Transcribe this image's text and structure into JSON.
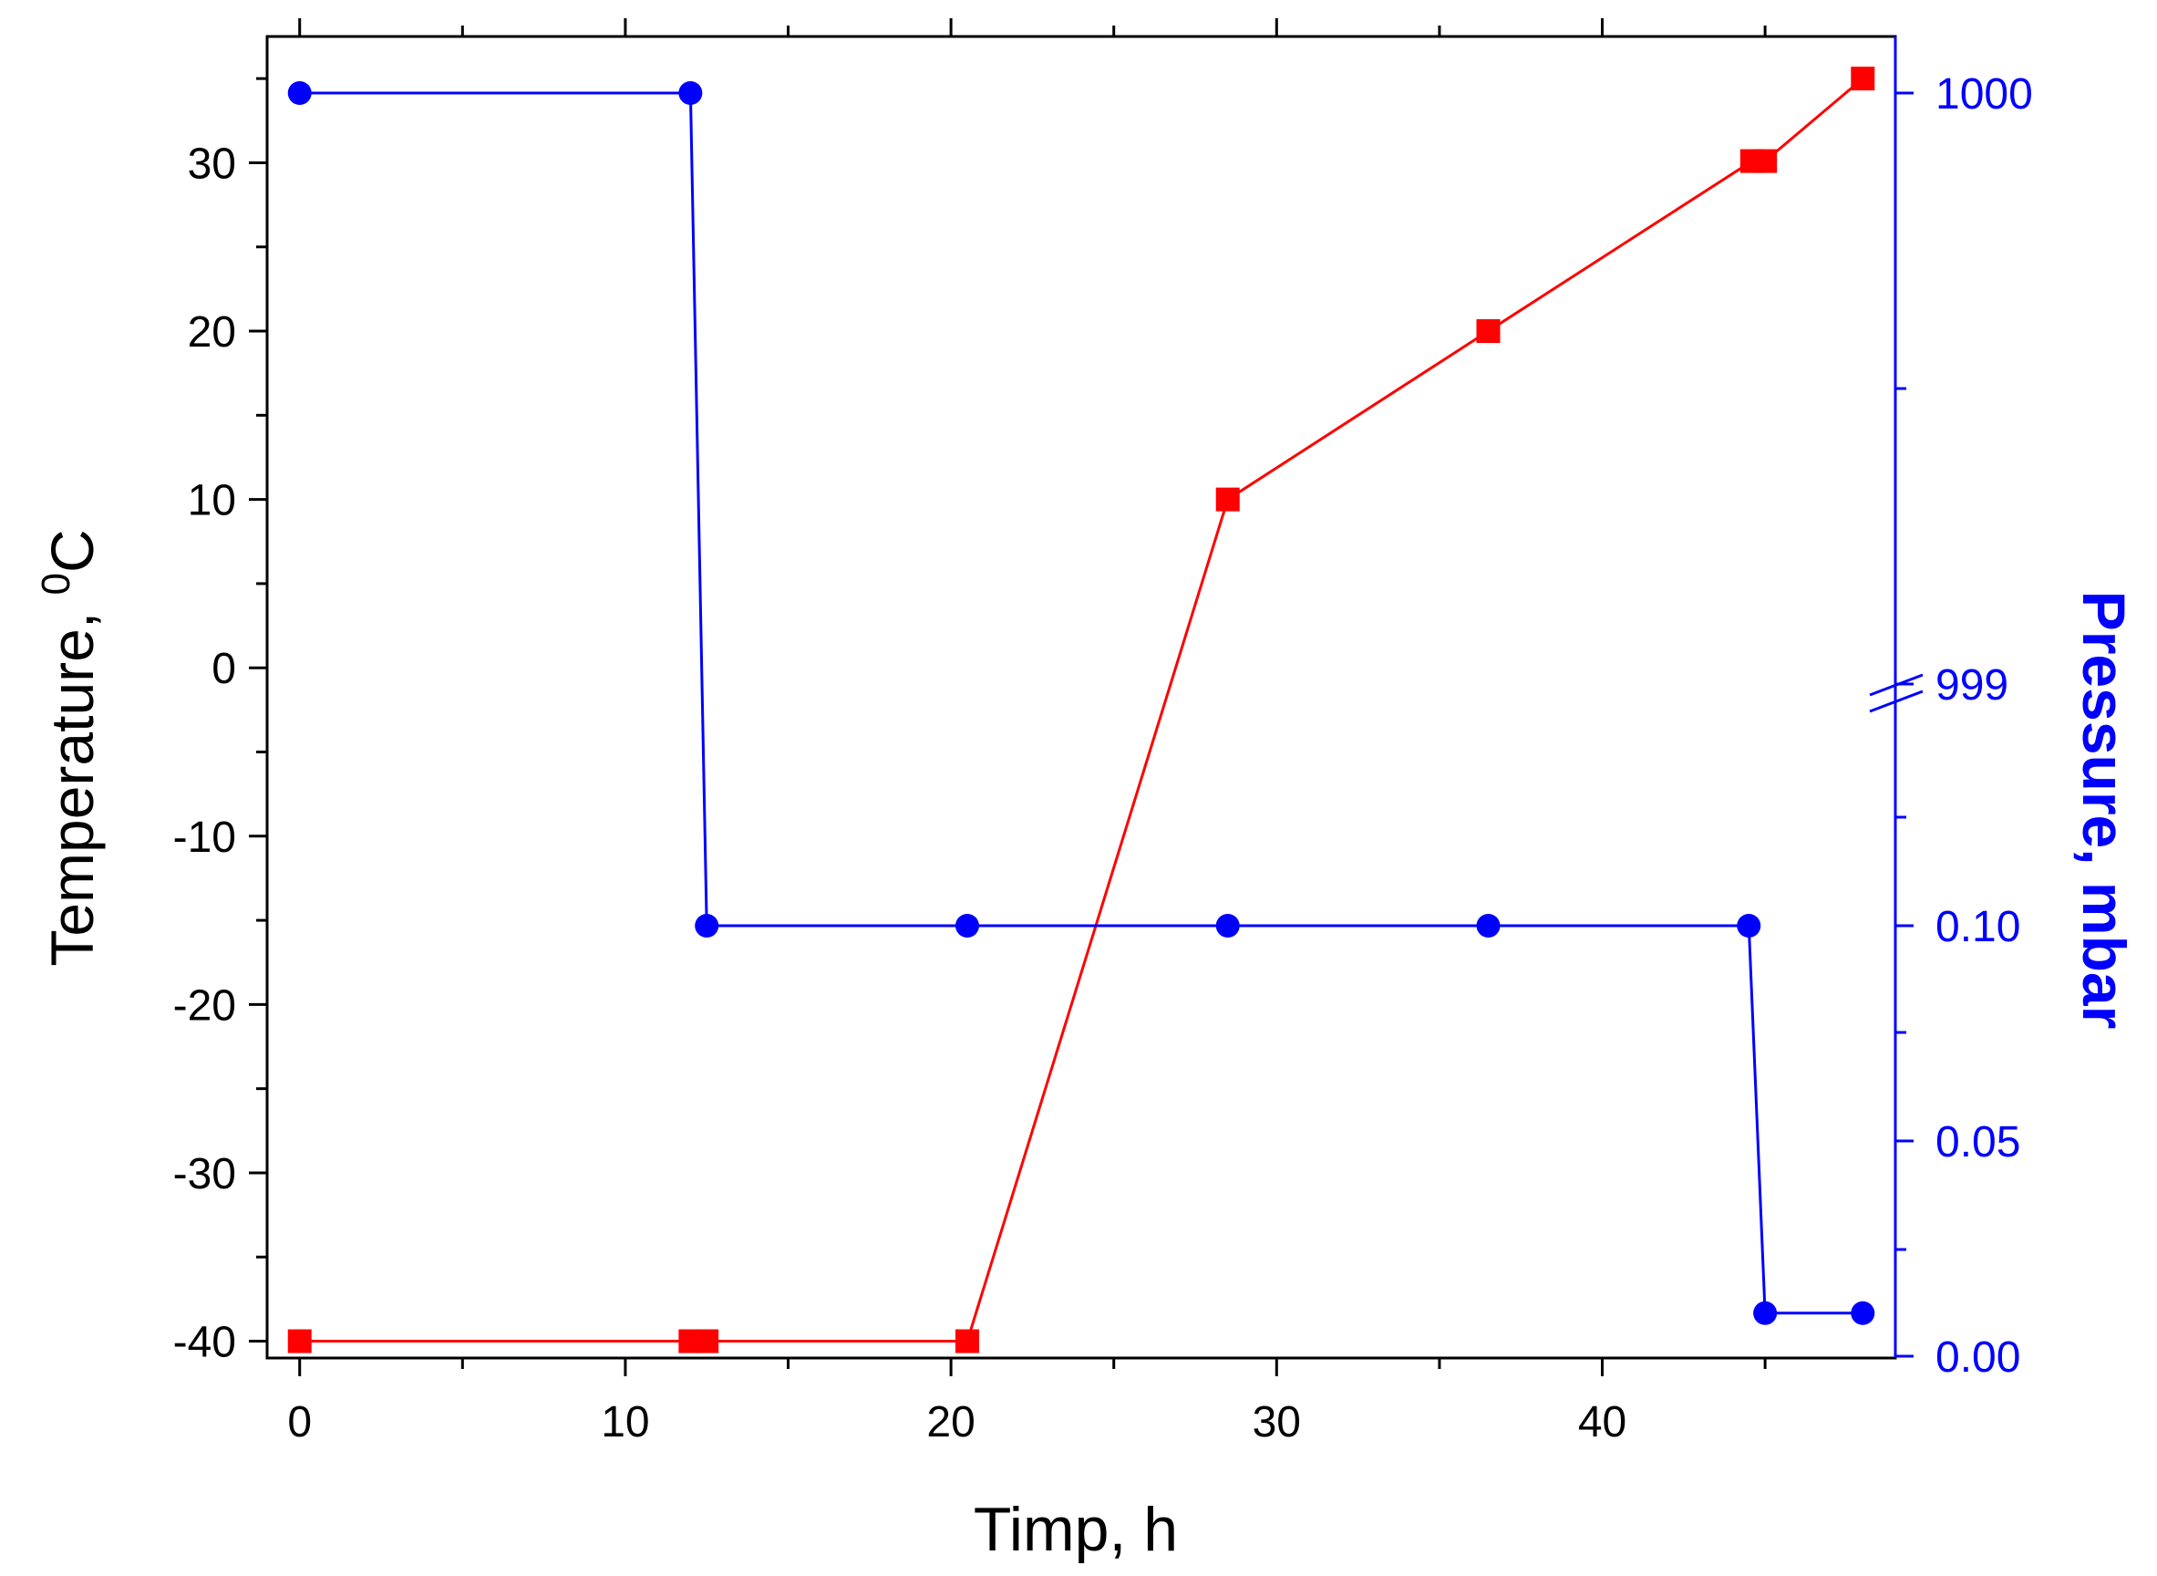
{
  "chart_data": {
    "type": "line",
    "title": "",
    "xlabel": "Timp, h",
    "ylabel": "Temperature, ",
    "ylabel_sup": "0",
    "ylabel_unit": "C",
    "y2label": "Pressure, mbar",
    "xlim": [
      -1,
      49
    ],
    "ylim": [
      -41,
      37.5
    ],
    "x_ticks": [
      0,
      10,
      20,
      30,
      40
    ],
    "y_ticks": [
      -40,
      -30,
      -20,
      -10,
      0,
      10,
      20,
      30
    ],
    "y2_ticks": [
      {
        "label": "1000"
      },
      {
        "label": "999"
      },
      {
        "label": "0.10"
      },
      {
        "label": "0.05"
      },
      {
        "label": "0.00"
      }
    ],
    "y2_axis_break": true,
    "grid": false,
    "legend": "none",
    "series": [
      {
        "axis": "left",
        "color": "#ff0000",
        "marker": "square",
        "x": [
          0,
          12,
          12.5,
          20.5,
          28.5,
          36.5,
          44.6,
          45,
          48
        ],
        "y": [
          -40,
          -40,
          -40,
          -40,
          10,
          20,
          30.1,
          30.1,
          35
        ]
      },
      {
        "axis": "right",
        "color": "#0000ff",
        "marker": "circle",
        "x": [
          0,
          12,
          12.5,
          20.5,
          28.5,
          36.5,
          44.5,
          45,
          48
        ],
        "y": [
          1000,
          1000,
          0.1,
          0.1,
          0.1,
          0.1,
          0.1,
          0.01,
          0.01
        ]
      }
    ]
  }
}
